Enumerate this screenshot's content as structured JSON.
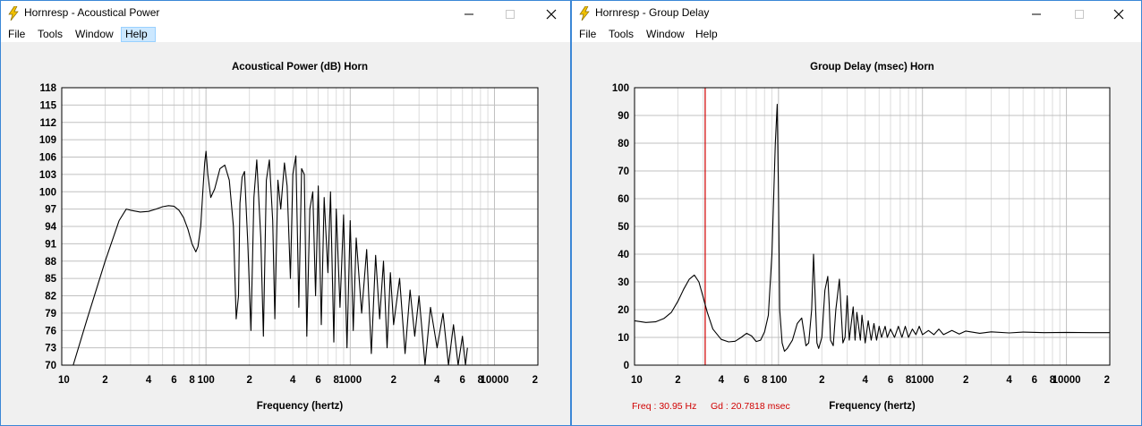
{
  "windows": [
    {
      "title": "Hornresp - Acoustical Power",
      "menu": [
        "File",
        "Tools",
        "Window",
        "Help"
      ],
      "active_menu": "Help"
    },
    {
      "title": "Hornresp - Group Delay",
      "menu": [
        "File",
        "Tools",
        "Window",
        "Help"
      ],
      "active_menu": ""
    }
  ],
  "colors": {
    "trace": "#000000",
    "cursor": "#d00000",
    "grid_major": "#c0c0c0",
    "grid_minor": "#dcdcdc",
    "plot_bg": "#ffffff"
  },
  "chart_data": [
    {
      "type": "line",
      "title": "Acoustical Power (dB)    Horn",
      "xlabel": "Frequency (hertz)",
      "ylabel": "",
      "xscale": "log",
      "xlim": [
        10,
        20000
      ],
      "ylim": [
        70,
        118
      ],
      "x_tick_labels": [
        "10",
        "2",
        "4",
        "6",
        "8",
        "100",
        "2",
        "4",
        "6",
        "8",
        "1000",
        "2",
        "4",
        "6",
        "8",
        "10000",
        "2"
      ],
      "y_tick_labels": [
        "118",
        "115",
        "112",
        "109",
        "106",
        "103",
        "100",
        "97",
        "94",
        "91",
        "88",
        "85",
        "82",
        "79",
        "76",
        "73",
        "70"
      ],
      "grid": true,
      "x": [
        12,
        15,
        20,
        25,
        28,
        30,
        35,
        40,
        45,
        50,
        55,
        60,
        65,
        70,
        75,
        80,
        85,
        88,
        92,
        95,
        98,
        100,
        103,
        108,
        115,
        125,
        135,
        145,
        155,
        162,
        168,
        172,
        178,
        185,
        195,
        205,
        215,
        225,
        240,
        250,
        262,
        275,
        290,
        300,
        315,
        330,
        350,
        365,
        385,
        400,
        420,
        440,
        460,
        480,
        500,
        525,
        550,
        575,
        600,
        630,
        660,
        700,
        730,
        770,
        800,
        850,
        900,
        950,
        1000,
        1050,
        1100,
        1200,
        1300,
        1400,
        1500,
        1600,
        1700,
        1800,
        1900,
        2000,
        2200,
        2400,
        2600,
        2800,
        3000,
        3300,
        3600,
        4000,
        4400,
        4800,
        5200,
        5600,
        6000,
        6300,
        6500
      ],
      "y": [
        70,
        78,
        88,
        95,
        97,
        96.8,
        96.5,
        96.6,
        97,
        97.4,
        97.6,
        97.5,
        96.8,
        95.5,
        93.5,
        91,
        89.6,
        90.5,
        94,
        100,
        105,
        107,
        103,
        99,
        100.5,
        104,
        104.6,
        102,
        94,
        78,
        82,
        98,
        102.5,
        103.5,
        91,
        76,
        99,
        105.5,
        92,
        75,
        102,
        105.5,
        95,
        78,
        102,
        97,
        105,
        101,
        85,
        103,
        106.2,
        80,
        104,
        103,
        75,
        97,
        100,
        82,
        101,
        77,
        99,
        86,
        100,
        74,
        97,
        80,
        96,
        73,
        95,
        76,
        92,
        79,
        90,
        72,
        89,
        78,
        88,
        73,
        86,
        77,
        85,
        72,
        83,
        75,
        82,
        70,
        80,
        73,
        79,
        70,
        77,
        70,
        75,
        70,
        73
      ]
    },
    {
      "type": "line",
      "title": "Group Delay (msec)    Horn",
      "xlabel": "Frequency (hertz)",
      "ylabel": "",
      "xscale": "log",
      "xlim": [
        10,
        20000
      ],
      "ylim": [
        0,
        100
      ],
      "x_tick_labels": [
        "10",
        "2",
        "4",
        "6",
        "8",
        "100",
        "2",
        "4",
        "6",
        "8",
        "1000",
        "2",
        "4",
        "6",
        "8",
        "10000",
        "2"
      ],
      "y_tick_labels": [
        "100",
        "90",
        "80",
        "70",
        "60",
        "50",
        "40",
        "30",
        "20",
        "10",
        "0"
      ],
      "grid": true,
      "cursor": {
        "freq_label": "Freq : 30.95 Hz",
        "gd_label": "Gd : 20.7818 msec",
        "x": 30.95
      },
      "x": [
        10,
        12,
        14,
        16,
        18,
        20,
        22,
        24,
        26,
        28,
        30,
        32,
        35,
        40,
        45,
        50,
        55,
        60,
        65,
        70,
        75,
        80,
        85,
        90,
        95,
        98,
        100,
        102,
        106,
        110,
        115,
        125,
        135,
        145,
        150,
        155,
        162,
        170,
        175,
        180,
        185,
        190,
        200,
        210,
        220,
        225,
        230,
        240,
        250,
        265,
        280,
        290,
        300,
        310,
        330,
        340,
        350,
        370,
        380,
        400,
        420,
        440,
        460,
        480,
        500,
        520,
        550,
        570,
        600,
        640,
        680,
        720,
        760,
        800,
        850,
        900,
        950,
        1000,
        1100,
        1200,
        1300,
        1400,
        1600,
        1800,
        2000,
        2500,
        3000,
        4000,
        5000,
        7000,
        10000,
        15000,
        20000
      ],
      "y": [
        16,
        15.4,
        15.6,
        16.8,
        19,
        23,
        27.5,
        31,
        32.5,
        30,
        24.5,
        19,
        13,
        9.3,
        8.4,
        8.6,
        10,
        11.5,
        10.5,
        8.5,
        9,
        12,
        18,
        40,
        80,
        94,
        60,
        20,
        8,
        5,
        6,
        9,
        15,
        17,
        12,
        7,
        8,
        20,
        40,
        24,
        8,
        6,
        10,
        27,
        32,
        22,
        9,
        7,
        20,
        31,
        8,
        10,
        25,
        9,
        21,
        9,
        19,
        9,
        18,
        8,
        16,
        9,
        15,
        9,
        14,
        10,
        14,
        10,
        13,
        10,
        14,
        10,
        14,
        10,
        13,
        11,
        14,
        11,
        12.5,
        11,
        13,
        11,
        12.5,
        11.2,
        12.3,
        11.5,
        12,
        11.6,
        11.9,
        11.7,
        11.8,
        11.7,
        11.7
      ]
    }
  ]
}
